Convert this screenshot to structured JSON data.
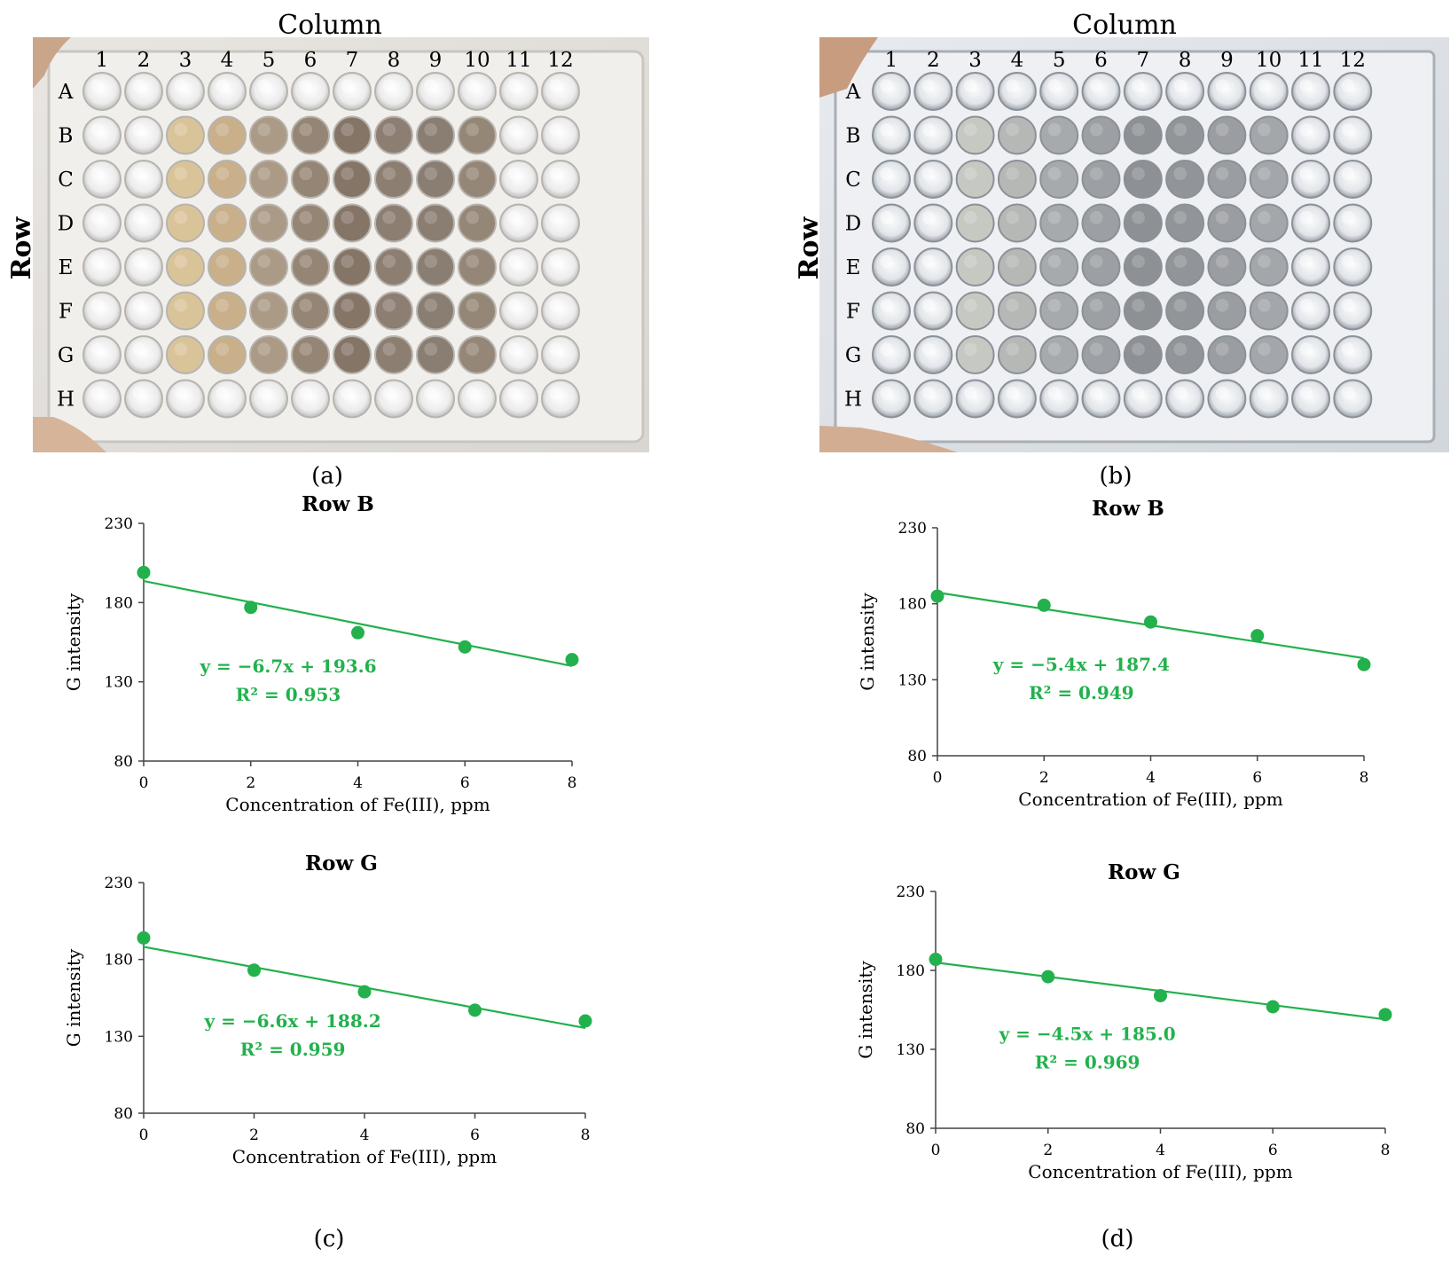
{
  "colors": {
    "accent": "#22b14c",
    "text": "#1a1a1a",
    "axis": "#444444"
  },
  "panels": {
    "a": {
      "letter": "(a)",
      "column_title": "Column",
      "row_title": "Row",
      "columns": [
        "1",
        "2",
        "3",
        "4",
        "5",
        "6",
        "7",
        "8",
        "9",
        "10",
        "11",
        "12"
      ],
      "rows": [
        "A",
        "B",
        "C",
        "D",
        "E",
        "F",
        "G",
        "H"
      ],
      "description_icon": "plate-photo-yellow-brown"
    },
    "b": {
      "letter": "(b)",
      "column_title": "Column",
      "row_title": "Row",
      "columns": [
        "1",
        "2",
        "3",
        "4",
        "5",
        "6",
        "7",
        "8",
        "9",
        "10",
        "11",
        "12"
      ],
      "rows": [
        "A",
        "B",
        "C",
        "D",
        "E",
        "F",
        "G",
        "H"
      ],
      "description_icon": "plate-photo-grey"
    },
    "c": {
      "letter": "(c)"
    },
    "d": {
      "letter": "(d)"
    }
  },
  "chart_data": [
    {
      "id": "c-rowB",
      "type": "scatter",
      "title": "Row B",
      "xlabel": "Concentration of Fe(III), ppm",
      "ylabel": "G intensity",
      "xlim": [
        0,
        8
      ],
      "ylim": [
        80,
        230
      ],
      "xticks": [
        0,
        2,
        4,
        6,
        8
      ],
      "yticks": [
        80,
        130,
        180,
        230
      ],
      "x": [
        0,
        2,
        4,
        6,
        8
      ],
      "y": [
        199,
        177,
        161,
        152,
        144
      ],
      "fit": {
        "slope": -6.7,
        "intercept": 193.6
      },
      "equation": "y = −6.7x + 193.6",
      "r2": "R² = 0.953"
    },
    {
      "id": "d-rowB",
      "type": "scatter",
      "title": "Row B",
      "xlabel": "Concentration of Fe(III), ppm",
      "ylabel": "G intensity",
      "xlim": [
        0,
        8
      ],
      "ylim": [
        80,
        230
      ],
      "xticks": [
        0,
        2,
        4,
        6,
        8
      ],
      "yticks": [
        80,
        130,
        180,
        230
      ],
      "x": [
        0,
        2,
        4,
        6,
        8
      ],
      "y": [
        185,
        179,
        168,
        159,
        140
      ],
      "fit": {
        "slope": -5.4,
        "intercept": 187.4
      },
      "equation": "y = −5.4x + 187.4",
      "r2": "R² = 0.949"
    },
    {
      "id": "c-rowG",
      "type": "scatter",
      "title": "Row G",
      "xlabel": "Concentration of Fe(III), ppm",
      "ylabel": "G intensity",
      "xlim": [
        0,
        8
      ],
      "ylim": [
        80,
        230
      ],
      "xticks": [
        0,
        2,
        4,
        6,
        8
      ],
      "yticks": [
        80,
        130,
        180,
        230
      ],
      "x": [
        0,
        2,
        4,
        6,
        8
      ],
      "y": [
        194,
        173,
        159,
        147,
        140
      ],
      "fit": {
        "slope": -6.6,
        "intercept": 188.2
      },
      "equation": "y = −6.6x + 188.2",
      "r2": "R² = 0.959"
    },
    {
      "id": "d-rowG",
      "type": "scatter",
      "title": "Row G",
      "xlabel": "Concentration of Fe(III), ppm",
      "ylabel": "G intensity",
      "xlim": [
        0,
        8
      ],
      "ylim": [
        80,
        230
      ],
      "xticks": [
        0,
        2,
        4,
        6,
        8
      ],
      "yticks": [
        80,
        130,
        180,
        230
      ],
      "x": [
        0,
        2,
        4,
        6,
        8
      ],
      "y": [
        187,
        176,
        164,
        157,
        152
      ],
      "fit": {
        "slope": -4.5,
        "intercept": 185.0
      },
      "equation": "y = −4.5x + 185.0",
      "r2": "R² = 0.969"
    }
  ]
}
